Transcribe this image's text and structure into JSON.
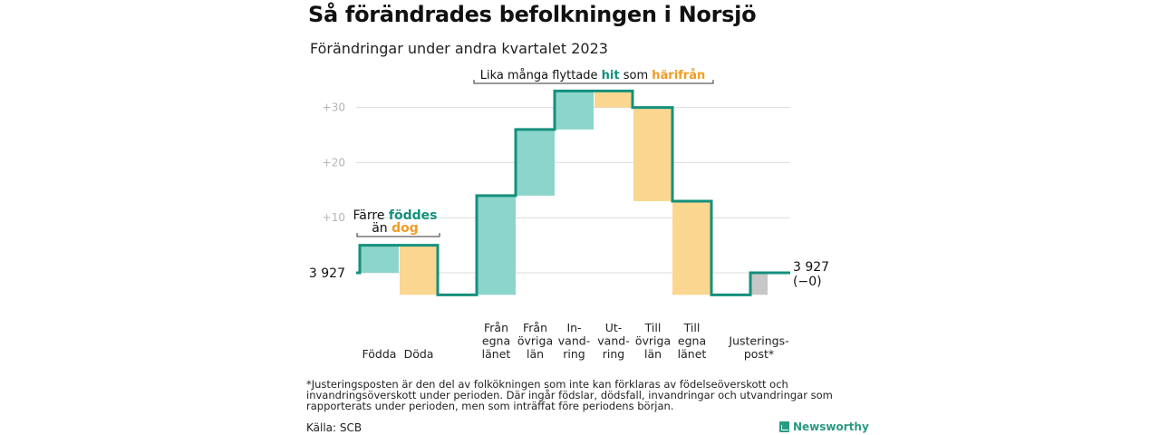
{
  "title": "Så förändrades befolkningen i Norsjö",
  "subtitle": "Förändringar under andra kvartalet 2023",
  "chart_data": {
    "type": "waterfall",
    "start_value": 3927,
    "start_label": "3 927",
    "end_label": "3 927",
    "end_change_label": "(−0)",
    "y_ticks": [
      "+10",
      "+20",
      "+30"
    ],
    "y_tick_values": [
      10,
      20,
      30
    ],
    "categories": [
      {
        "label": [
          "Födda"
        ],
        "change": 5,
        "kind": "in"
      },
      {
        "label": [
          "Döda"
        ],
        "change": -9,
        "kind": "out"
      },
      {
        "label": [
          "Från",
          "egna",
          "länet"
        ],
        "change": 18,
        "kind": "in"
      },
      {
        "label": [
          "Från",
          "övriga",
          "län"
        ],
        "change": 12,
        "kind": "in"
      },
      {
        "label": [
          "In-",
          "vand-",
          "ring"
        ],
        "change": 7,
        "kind": "in"
      },
      {
        "label": [
          "Ut-",
          "vand-",
          "ring"
        ],
        "change": -3,
        "kind": "out"
      },
      {
        "label": [
          "Till",
          "övriga",
          "län"
        ],
        "change": -17,
        "kind": "out"
      },
      {
        "label": [
          "Till",
          "egna",
          "länet"
        ],
        "change": -17,
        "kind": "out"
      },
      {
        "label": [
          "Justerings-",
          "post*"
        ],
        "change": 4,
        "kind": "adjust"
      }
    ],
    "annotations": {
      "births": {
        "line1": "Färre",
        "hl1": "föddes",
        "line2": "än",
        "hl2": "dog"
      },
      "migration": {
        "pre": "Lika många flyttade",
        "hl1": "hit",
        "mid": "som",
        "hl2": "härifrån"
      }
    },
    "colors": {
      "in_fill": "#8cd5cb",
      "out_fill": "#fad690",
      "adjust_fill": "#c7c7c7",
      "line": "#14907d",
      "hl_in": "#14907d",
      "hl_out": "#f19c23",
      "grid": "#dcdcdc"
    }
  },
  "footnote": "*Justeringsposten är den del av folkökningen som inte kan förklaras av födelseöverskott och invandringsöverskott under perioden. Där ingår födslar, dödsfall, invandringar och utvandringar som rapporterats under perioden, men som inträffat före periodens början.",
  "source": "Källa: SCB",
  "brand": "Newsworthy"
}
